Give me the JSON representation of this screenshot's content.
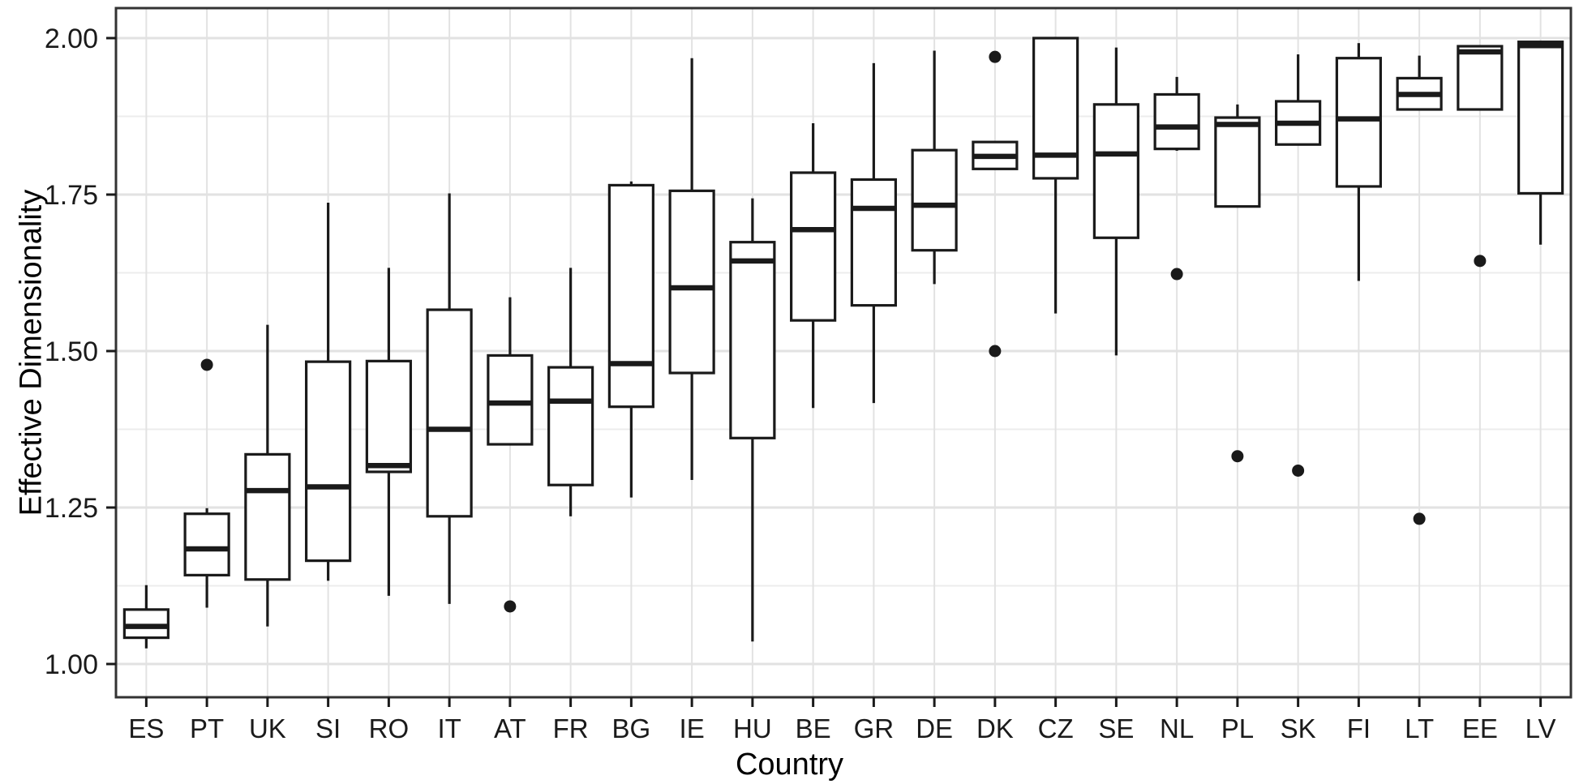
{
  "chart_data": {
    "type": "boxplot",
    "title": "",
    "xlabel": "Country",
    "ylabel": "Effective Dimensionality",
    "categories": [
      "ES",
      "PT",
      "UK",
      "SI",
      "RO",
      "IT",
      "AT",
      "FR",
      "BG",
      "IE",
      "HU",
      "BE",
      "GR",
      "DE",
      "DK",
      "CZ",
      "SE",
      "NL",
      "PL",
      "SK",
      "FI",
      "LT",
      "EE",
      "LV"
    ],
    "y_ticks": [
      "1.00",
      "1.25",
      "1.50",
      "1.75",
      "2.00"
    ],
    "y_tick_values": [
      1.0,
      1.25,
      1.5,
      1.75,
      2.0
    ],
    "y_minor_ticks": [
      1.125,
      1.375,
      1.625,
      1.875
    ],
    "ylim": [
      0.947,
      2.048
    ],
    "grid": true,
    "legend": "none",
    "boxes": [
      {
        "country": "ES",
        "whisker_low": 1.025,
        "q1": 1.042,
        "median": 1.06,
        "q3": 1.087,
        "whisker_high": 1.126,
        "outliers": []
      },
      {
        "country": "PT",
        "whisker_low": 1.09,
        "q1": 1.142,
        "median": 1.184,
        "q3": 1.24,
        "whisker_high": 1.249,
        "outliers": [
          1.478
        ]
      },
      {
        "country": "UK",
        "whisker_low": 1.06,
        "q1": 1.135,
        "median": 1.277,
        "q3": 1.335,
        "whisker_high": 1.542,
        "outliers": []
      },
      {
        "country": "SI",
        "whisker_low": 1.133,
        "q1": 1.165,
        "median": 1.283,
        "q3": 1.483,
        "whisker_high": 1.737,
        "outliers": []
      },
      {
        "country": "RO",
        "whisker_low": 1.109,
        "q1": 1.307,
        "median": 1.317,
        "q3": 1.484,
        "whisker_high": 1.633,
        "outliers": []
      },
      {
        "country": "IT",
        "whisker_low": 1.096,
        "q1": 1.236,
        "median": 1.375,
        "q3": 1.566,
        "whisker_high": 1.752,
        "outliers": []
      },
      {
        "country": "AT",
        "whisker_low": 1.351,
        "q1": 1.351,
        "median": 1.417,
        "q3": 1.493,
        "whisker_high": 1.586,
        "outliers": [
          1.092
        ]
      },
      {
        "country": "FR",
        "whisker_low": 1.236,
        "q1": 1.286,
        "median": 1.42,
        "q3": 1.474,
        "whisker_high": 1.633,
        "outliers": []
      },
      {
        "country": "BG",
        "whisker_low": 1.266,
        "q1": 1.411,
        "median": 1.48,
        "q3": 1.765,
        "whisker_high": 1.771,
        "outliers": []
      },
      {
        "country": "IE",
        "whisker_low": 1.294,
        "q1": 1.465,
        "median": 1.601,
        "q3": 1.756,
        "whisker_high": 1.968,
        "outliers": []
      },
      {
        "country": "HU",
        "whisker_low": 1.036,
        "q1": 1.361,
        "median": 1.644,
        "q3": 1.674,
        "whisker_high": 1.744,
        "outliers": []
      },
      {
        "country": "BE",
        "whisker_low": 1.409,
        "q1": 1.549,
        "median": 1.694,
        "q3": 1.785,
        "whisker_high": 1.864,
        "outliers": []
      },
      {
        "country": "GR",
        "whisker_low": 1.417,
        "q1": 1.573,
        "median": 1.728,
        "q3": 1.774,
        "whisker_high": 1.96,
        "outliers": []
      },
      {
        "country": "DE",
        "whisker_low": 1.607,
        "q1": 1.661,
        "median": 1.733,
        "q3": 1.821,
        "whisker_high": 1.98,
        "outliers": []
      },
      {
        "country": "DK",
        "whisker_low": 1.791,
        "q1": 1.791,
        "median": 1.811,
        "q3": 1.834,
        "whisker_high": 1.834,
        "outliers": [
          1.97,
          1.5
        ]
      },
      {
        "country": "CZ",
        "whisker_low": 1.56,
        "q1": 1.776,
        "median": 1.813,
        "q3": 2.0,
        "whisker_high": 2.0,
        "outliers": []
      },
      {
        "country": "SE",
        "whisker_low": 1.493,
        "q1": 1.681,
        "median": 1.815,
        "q3": 1.894,
        "whisker_high": 1.985,
        "outliers": []
      },
      {
        "country": "NL",
        "whisker_low": 1.82,
        "q1": 1.823,
        "median": 1.858,
        "q3": 1.91,
        "whisker_high": 1.938,
        "outliers": [
          1.623
        ]
      },
      {
        "country": "PL",
        "whisker_low": 1.731,
        "q1": 1.731,
        "median": 1.862,
        "q3": 1.873,
        "whisker_high": 1.894,
        "outliers": [
          1.332
        ]
      },
      {
        "country": "SK",
        "whisker_low": 1.83,
        "q1": 1.83,
        "median": 1.864,
        "q3": 1.899,
        "whisker_high": 1.974,
        "outliers": [
          1.309
        ]
      },
      {
        "country": "FI",
        "whisker_low": 1.612,
        "q1": 1.763,
        "median": 1.871,
        "q3": 1.968,
        "whisker_high": 1.992,
        "outliers": []
      },
      {
        "country": "LT",
        "whisker_low": 1.886,
        "q1": 1.886,
        "median": 1.91,
        "q3": 1.936,
        "whisker_high": 1.972,
        "outliers": [
          1.232
        ]
      },
      {
        "country": "EE",
        "whisker_low": 1.886,
        "q1": 1.886,
        "median": 1.978,
        "q3": 1.987,
        "whisker_high": 1.987,
        "outliers": [
          1.644
        ]
      },
      {
        "country": "LV",
        "whisker_low": 1.67,
        "q1": 1.752,
        "median": 1.988,
        "q3": 1.994,
        "whisker_high": 1.994,
        "outliers": []
      }
    ],
    "colors": {
      "line": "#1a1a1a",
      "box_fill": "#ffffff",
      "panel_border": "#333333",
      "grid_major": "#e2e2e2",
      "grid_minor": "#ececec",
      "background": "#ffffff",
      "tick_label": "#1a1a1a",
      "axis_title": "#000000",
      "outlier": "#1a1a1a"
    }
  }
}
